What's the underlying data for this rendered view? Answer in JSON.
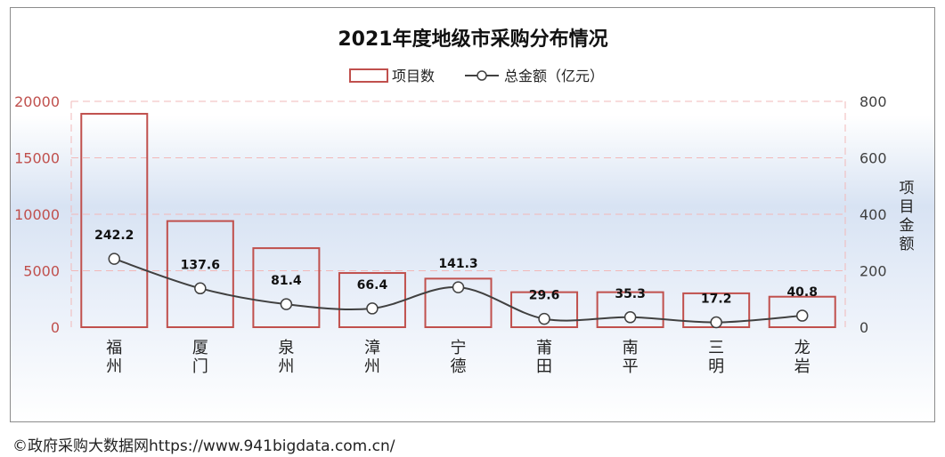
{
  "chart_data": {
    "type": "bar",
    "title": "2021年度地级市采购分布情况",
    "categories": [
      "福州",
      "厦门",
      "泉州",
      "漳州",
      "宁德",
      "莆田",
      "南平",
      "三明",
      "龙岩"
    ],
    "series": [
      {
        "name": "项目数",
        "type": "bar",
        "axis": "left",
        "values": [
          18900,
          9400,
          7000,
          4800,
          4300,
          3100,
          3100,
          3000,
          2700
        ]
      },
      {
        "name": "总金额（亿元）",
        "type": "line",
        "axis": "right",
        "values": [
          242.2,
          137.6,
          81.4,
          66.4,
          141.3,
          29.6,
          35.3,
          17.2,
          40.8
        ],
        "data_labels": [
          "242.2",
          "137.6",
          "81.4",
          "66.4",
          "141.3",
          "29.6",
          "35.3",
          "17.2",
          "40.8"
        ]
      }
    ],
    "y_left": {
      "lim": [
        0,
        20000
      ],
      "ticks": [
        "0",
        "5000",
        "10000",
        "15000",
        "20000"
      ],
      "color": "#c0504d"
    },
    "y_right": {
      "lim": [
        0,
        800
      ],
      "ticks": [
        "0",
        "200",
        "400",
        "600",
        "800"
      ],
      "label": "项目金额",
      "color": "#404040"
    },
    "legend": "top-center",
    "grid": true,
    "colors": {
      "bar": "#c0504d",
      "line": "#404040",
      "grid": "#f2b8b8"
    }
  },
  "footer": {
    "text": "©政府采购大数据网https://www.941bigdata.com.cn/"
  }
}
